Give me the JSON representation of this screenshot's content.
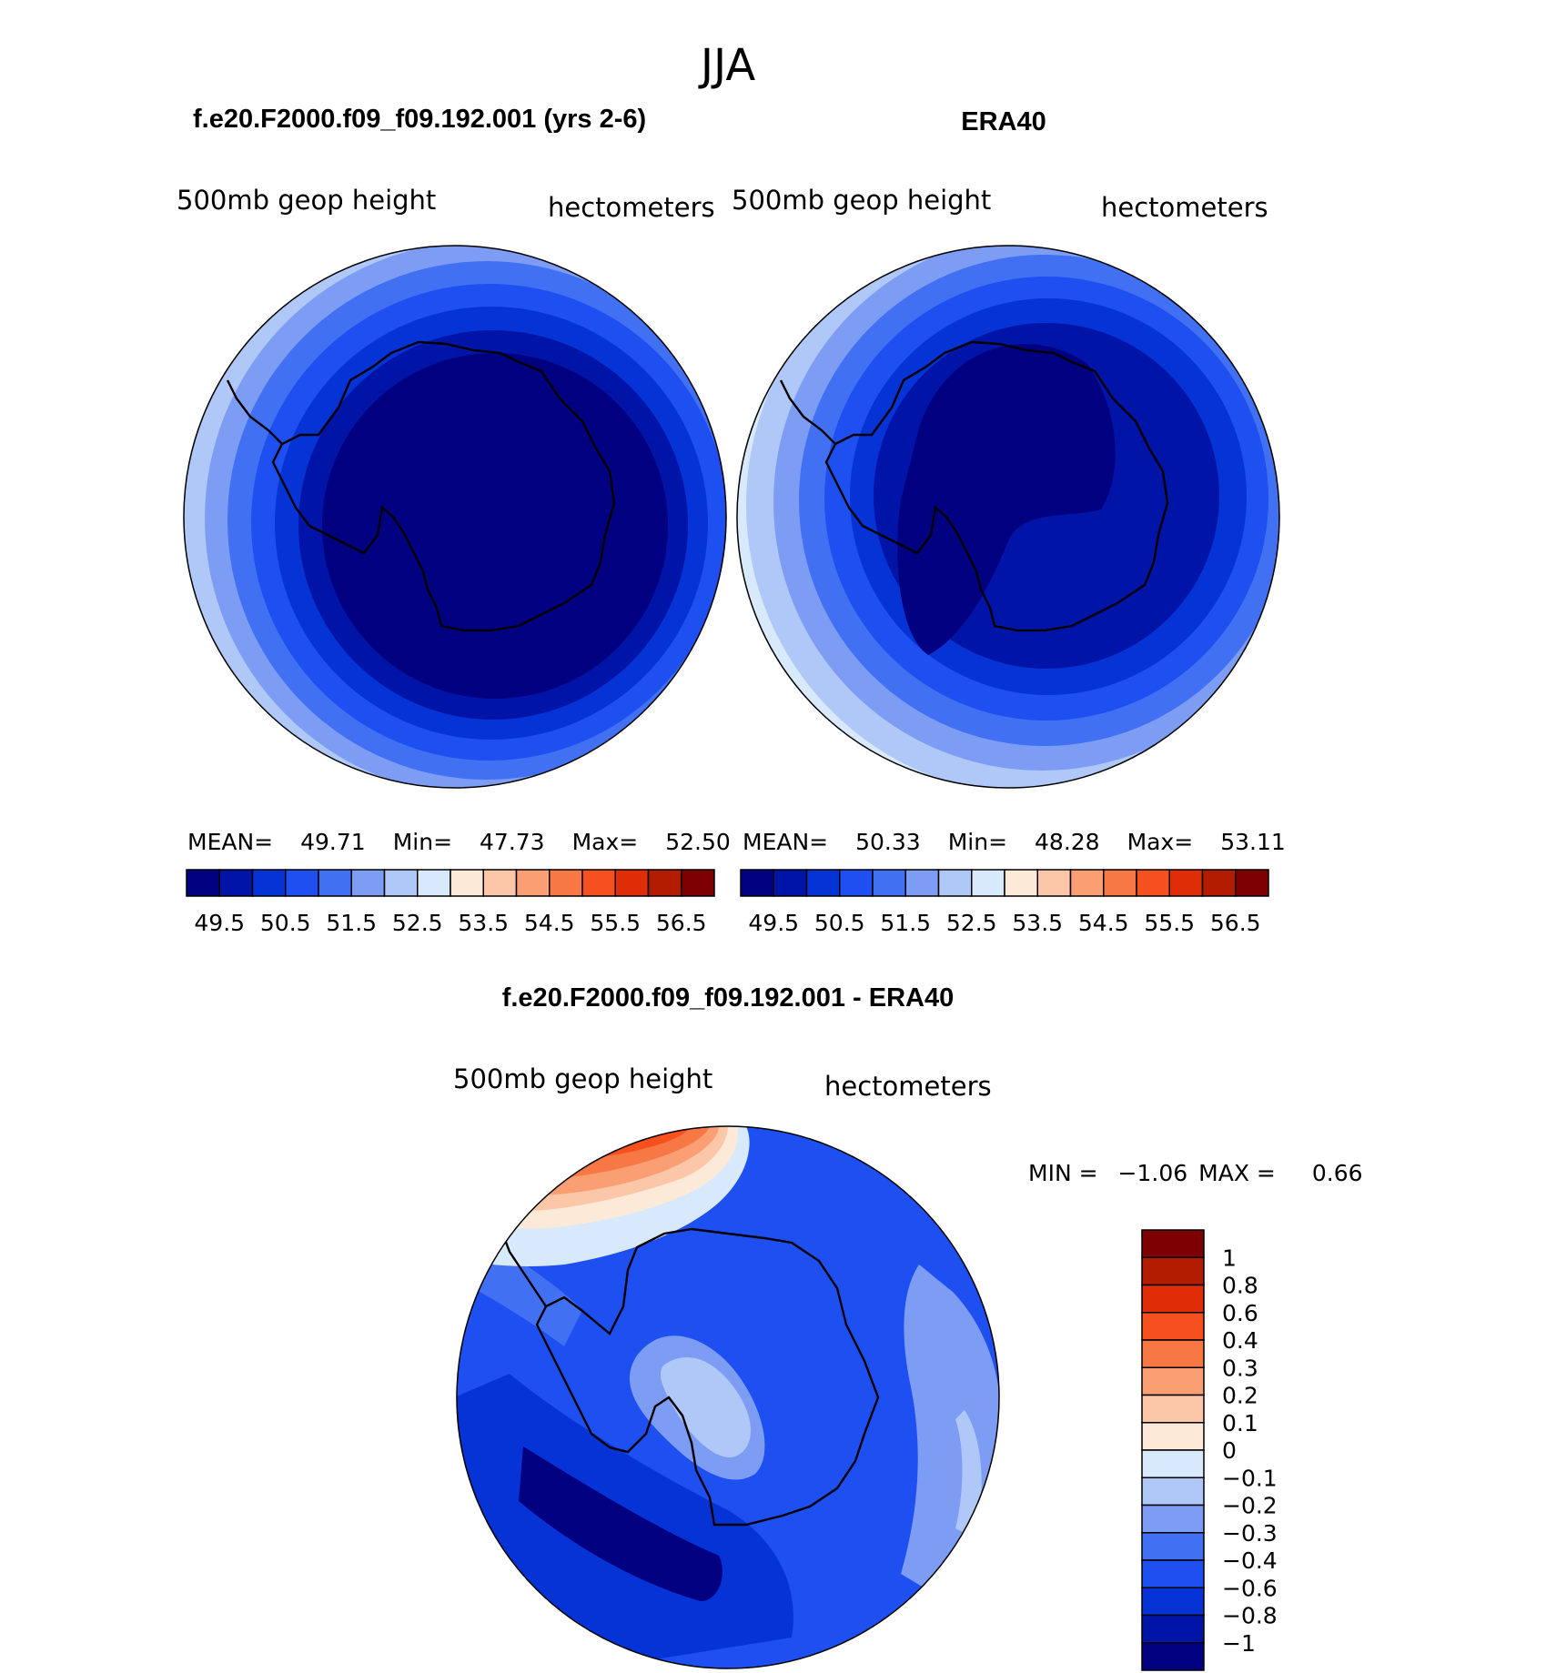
{
  "figure_title": "JJA",
  "colors": {
    "abs_scale": [
      "#000080",
      "#0015a8",
      "#0533d6",
      "#1e4ff0",
      "#4171f2",
      "#7d9df5",
      "#b0c8f8",
      "#d7e9fb",
      "#fde9d8",
      "#fcc6a8",
      "#fa9e74",
      "#f77845",
      "#f6501f",
      "#df2d08",
      "#b21c01",
      "#7d0102"
    ],
    "diff_scale": [
      "#000080",
      "#0015a8",
      "#0533d6",
      "#1e4ff0",
      "#4171f2",
      "#7d9df5",
      "#b0c8f8",
      "#d7e9fb",
      "#fde9d8",
      "#fcc6a8",
      "#fa9e74",
      "#f77845",
      "#f6501f",
      "#df2d08",
      "#b21c01",
      "#7d0102"
    ]
  },
  "chart_data": [
    {
      "type": "heatmap",
      "panel_title": "f.e20.F2000.f09_f09.192.001 (yrs 2-6)",
      "left_label": "500mb  geop  height",
      "right_label": "hectometers",
      "stats": {
        "mean_label": "MEAN=",
        "mean": "49.71",
        "min_label": "Min=",
        "min": "47.73",
        "max_label": "Max=",
        "max": "52.50"
      },
      "colorbar_ticks": [
        "49.5",
        "50.5",
        "51.5",
        "52.5",
        "53.5",
        "54.5",
        "55.5",
        "56.5"
      ],
      "levels_band_index": [
        0,
        1,
        2,
        3,
        4,
        5,
        6
      ]
    },
    {
      "type": "heatmap",
      "panel_title": "ERA40",
      "left_label": "500mb  geop  height",
      "right_label": "hectometers",
      "stats": {
        "mean_label": "MEAN=",
        "mean": "50.33",
        "min_label": "Min=",
        "min": "48.28",
        "max_label": "Max=",
        "max": "53.11"
      },
      "colorbar_ticks": [
        "49.5",
        "50.5",
        "51.5",
        "52.5",
        "53.5",
        "54.5",
        "55.5",
        "56.5"
      ],
      "levels_band_index": [
        0,
        1,
        2,
        3,
        4,
        5,
        6,
        7
      ]
    },
    {
      "type": "heatmap",
      "panel_title": "f.e20.F2000.f09_f09.192.001 - ERA40",
      "left_label": "500mb  geop  height",
      "right_label": "hectometers",
      "stats": {
        "min_label": "MIN =",
        "min": "−1.06",
        "max_label": "MAX =",
        "max": "0.66"
      },
      "colorbar_ticks": [
        "1",
        "0.8",
        "0.6",
        "0.4",
        "0.3",
        "0.2",
        "0.1",
        "0",
        "−0.1",
        "−0.2",
        "−0.3",
        "−0.4",
        "−0.6",
        "−0.8",
        "−1"
      ]
    }
  ]
}
